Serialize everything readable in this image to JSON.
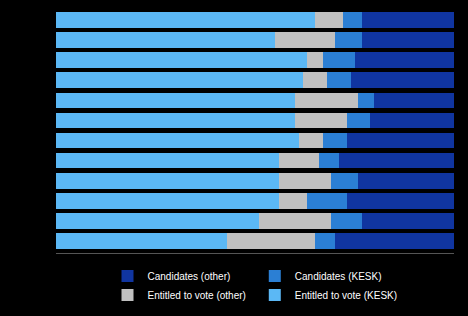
{
  "chart_data": {
    "type": "bar",
    "orientation": "horizontal",
    "stacked": true,
    "categories": [
      null,
      null,
      null,
      null,
      null,
      null,
      null,
      null,
      null,
      null,
      null,
      null
    ],
    "series": [
      {
        "name": "Entitled to vote (KESK)",
        "color": "#5BB8F5",
        "values": [
          65.0,
          55.0,
          63.0,
          62.0,
          60.0,
          60.0,
          61.0,
          56.0,
          56.0,
          56.0,
          51.0,
          43.0
        ]
      },
      {
        "name": "Entitled to vote (other)",
        "color": "#C0C0C0",
        "values": [
          7.0,
          15.0,
          4.0,
          6.0,
          16.0,
          13.0,
          6.0,
          10.0,
          13.0,
          7.0,
          18.0,
          22.0
        ]
      },
      {
        "name": "Candidates (KESK)",
        "color": "#2B7FD4",
        "values": [
          5.0,
          7.0,
          8.0,
          6.0,
          4.0,
          6.0,
          6.0,
          5.0,
          7.0,
          10.0,
          8.0,
          5.0
        ]
      },
      {
        "name": "Candidates (other)",
        "color": "#1035A0",
        "values": [
          23.0,
          23.0,
          25.0,
          26.0,
          20.0,
          21.0,
          27.0,
          29.0,
          24.0,
          27.0,
          23.0,
          30.0
        ]
      }
    ],
    "xlim": [
      0,
      100
    ],
    "tick_labels": false,
    "grid": false,
    "legend": "bottom"
  }
}
